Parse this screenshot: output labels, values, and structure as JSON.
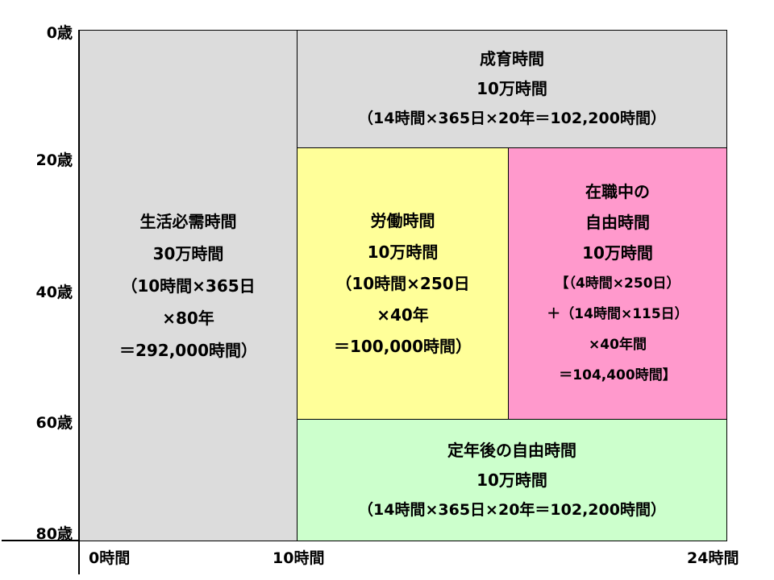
{
  "y_axis": {
    "labels": [
      "0歳",
      "20歳",
      "40歳",
      "60歳",
      "80歳"
    ]
  },
  "x_axis": {
    "labels": [
      "0時間",
      "10時間",
      "24時間"
    ]
  },
  "boxes": [
    {
      "lines": [
        "生活必需時間",
        "30万時間",
        "（10時間×365日",
        "×80年",
        "＝292,000時間）"
      ]
    },
    {
      "lines": [
        "成育時間",
        "10万時間",
        "（14時間×365日×20年＝102,200時間）"
      ]
    },
    {
      "lines": [
        "労働時間",
        "10万時間",
        "（10時間×250日",
        "×40年",
        "＝100,000時間）"
      ]
    },
    {
      "lines": [
        "在職中の",
        "自由時間",
        "10万時間",
        "【（4時間×250日）",
        "＋（14時間×115日）",
        "×40年間",
        "＝104,400時間】"
      ]
    },
    {
      "lines": [
        "定年後の自由時間",
        "10万時間",
        "（14時間×365日×20年＝102,200時間）"
      ]
    }
  ]
}
